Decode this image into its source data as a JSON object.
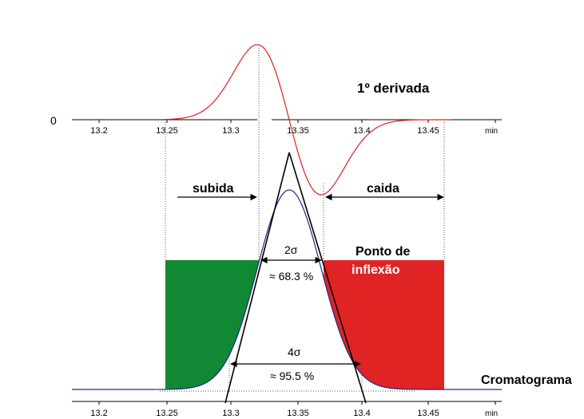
{
  "top_axis": {
    "zero_label": "0",
    "ticks": [
      "13.2",
      "13.25",
      "13.3",
      "13.35",
      "13.4",
      "13.45"
    ],
    "unit": "min"
  },
  "bottom_axis": {
    "ticks": [
      "13.2",
      "13.25",
      "13.3",
      "13.35",
      "13.4",
      "13.45"
    ],
    "unit": "min"
  },
  "labels": {
    "derivative": "1º derivada",
    "rise": "subida",
    "fall": "caida",
    "inflection_line1": "Ponto de",
    "inflection_line2": "inflexão",
    "chromatogram": "Cromatograma",
    "two_sigma": "2σ",
    "pct_683": "≈ 68.3 %",
    "four_sigma": "4σ",
    "pct_955": "≈ 95.5 %"
  },
  "colors": {
    "derivative_curve": "#e02020",
    "chromatogram_curve": "#1a2a8a",
    "rise_fill": "#118833",
    "fall_fill": "#e02424",
    "triangle": "#000000"
  }
}
